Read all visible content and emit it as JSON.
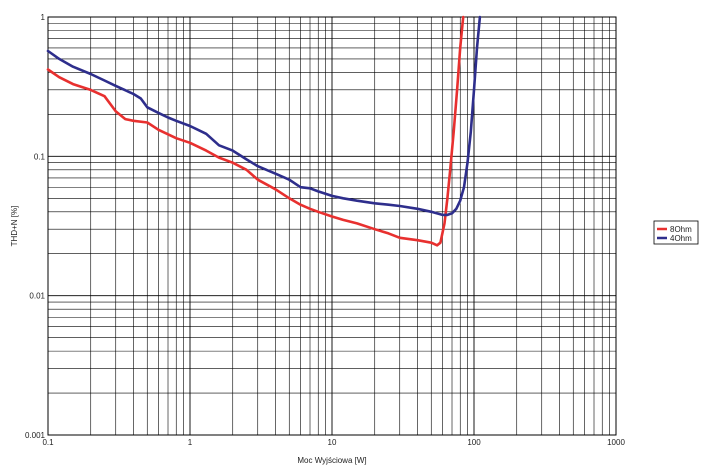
{
  "chart_data": {
    "type": "line",
    "title": "",
    "xlabel": "Moc Wyjściowa [W]",
    "ylabel": "THD+N [%]",
    "x_scale": "log",
    "y_scale": "log",
    "xlim": [
      0.1,
      1000
    ],
    "ylim": [
      0.001,
      1
    ],
    "x_ticks": [
      "0.1",
      "1",
      "10",
      "100",
      "1000"
    ],
    "y_ticks": [
      "1",
      "0.1",
      "0.01",
      "0.001"
    ],
    "grid": true,
    "legend_position": "right",
    "series": [
      {
        "name": "8Ohm",
        "color": "#e8302f",
        "x": [
          0.1,
          0.12,
          0.15,
          0.2,
          0.25,
          0.3,
          0.35,
          0.4,
          0.5,
          0.6,
          0.8,
          1.0,
          1.3,
          1.6,
          2,
          2.5,
          3,
          4,
          5,
          6,
          7,
          8,
          10,
          12,
          15,
          20,
          25,
          30,
          40,
          50,
          55,
          58,
          62,
          65,
          68,
          72,
          76,
          80,
          84
        ],
        "y": [
          0.42,
          0.37,
          0.33,
          0.3,
          0.27,
          0.21,
          0.185,
          0.18,
          0.175,
          0.155,
          0.135,
          0.125,
          0.11,
          0.098,
          0.09,
          0.08,
          0.068,
          0.058,
          0.05,
          0.045,
          0.042,
          0.04,
          0.037,
          0.035,
          0.033,
          0.03,
          0.028,
          0.026,
          0.025,
          0.024,
          0.023,
          0.024,
          0.033,
          0.05,
          0.08,
          0.15,
          0.3,
          0.6,
          1.0
        ]
      },
      {
        "name": "4Ohm",
        "color": "#2e2e8c",
        "x": [
          0.1,
          0.12,
          0.15,
          0.2,
          0.25,
          0.3,
          0.4,
          0.45,
          0.5,
          0.6,
          0.7,
          0.8,
          1.0,
          1.3,
          1.6,
          2,
          2.5,
          3,
          4,
          5,
          6,
          7,
          8,
          10,
          12,
          15,
          20,
          25,
          30,
          40,
          50,
          60,
          65,
          70,
          75,
          80,
          85,
          90,
          95,
          100,
          105,
          110
        ],
        "y": [
          0.57,
          0.5,
          0.44,
          0.39,
          0.35,
          0.32,
          0.28,
          0.26,
          0.225,
          0.205,
          0.19,
          0.18,
          0.165,
          0.145,
          0.12,
          0.11,
          0.095,
          0.085,
          0.075,
          0.068,
          0.06,
          0.059,
          0.056,
          0.052,
          0.05,
          0.048,
          0.046,
          0.045,
          0.044,
          0.042,
          0.04,
          0.038,
          0.038,
          0.039,
          0.042,
          0.048,
          0.06,
          0.09,
          0.15,
          0.3,
          0.6,
          1.0
        ]
      }
    ]
  }
}
